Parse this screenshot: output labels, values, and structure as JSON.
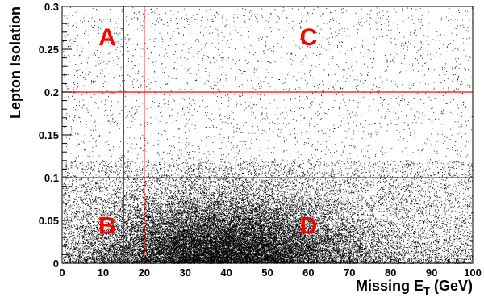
{
  "chart_data": {
    "type": "scatter",
    "title": "",
    "xlabel": {
      "main": "Missing E",
      "subscript": "T",
      "unit": " (GeV)"
    },
    "ylabel": "Lepton Isolation",
    "xlim": [
      0,
      100
    ],
    "ylim": [
      0,
      0.3
    ],
    "x_ticks": [
      "0",
      "10",
      "20",
      "30",
      "40",
      "50",
      "60",
      "70",
      "80",
      "90",
      "100"
    ],
    "y_ticks": [
      "0",
      "0.05",
      "0.1",
      "0.15",
      "0.2",
      "0.25",
      "0.3"
    ],
    "grid": false,
    "point_color": "#000000",
    "cut_color": "#ff0000",
    "cut_lines": {
      "vertical_x": [
        15,
        20
      ],
      "horizontal_y": [
        0.1,
        0.2
      ]
    },
    "regions": [
      {
        "label": "A",
        "x": 11,
        "y": 0.265
      },
      {
        "label": "C",
        "x": 60,
        "y": 0.265
      },
      {
        "label": "B",
        "x": 11,
        "y": 0.045
      },
      {
        "label": "D",
        "x": 60,
        "y": 0.045
      }
    ],
    "density_description": {
      "x_peak": 40,
      "y_peak": 0.0,
      "note": "dense population at low isolation peaking near 40 GeV, sparse uniform background elsewhere"
    }
  }
}
